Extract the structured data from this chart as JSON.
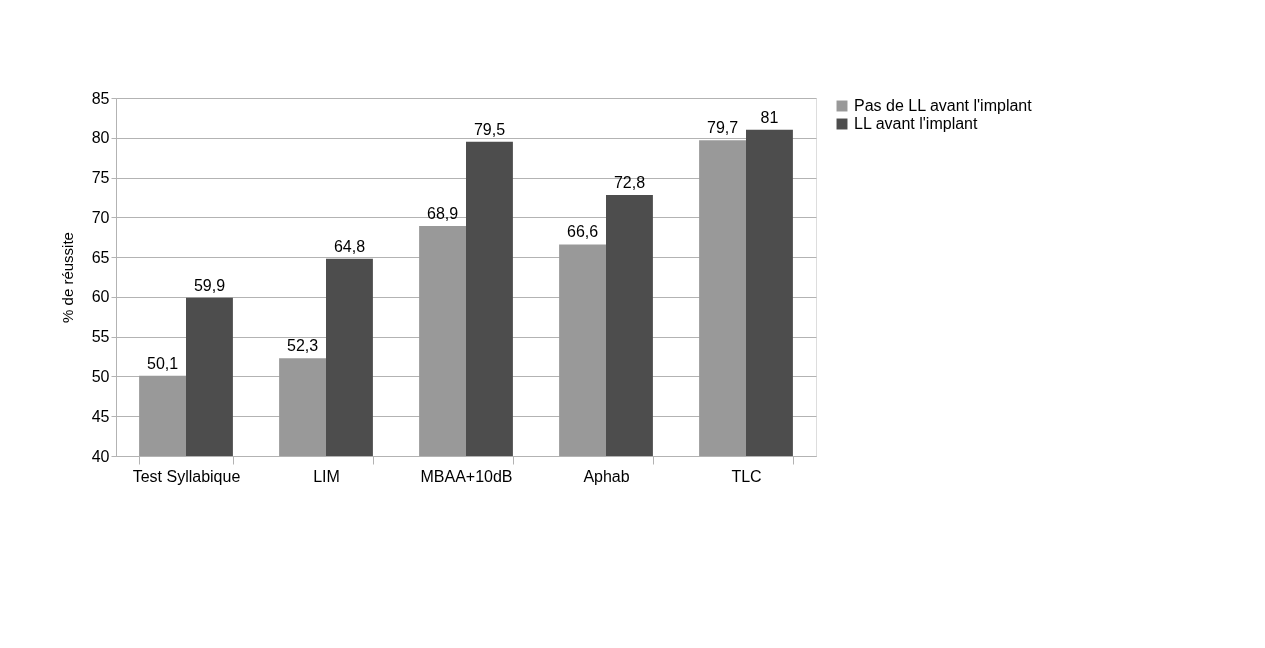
{
  "chart_data": {
    "type": "bar",
    "ylabel": "% de réussite",
    "categories": [
      "Test Syllabique",
      "LIM",
      "MBAA+10dB",
      "Aphab",
      "TLC"
    ],
    "series": [
      {
        "name": "Pas de LL avant l'implant",
        "color": "#999999",
        "values": [
          50.1,
          52.3,
          68.9,
          66.6,
          79.7
        ],
        "value_labels": [
          "50,1",
          "52,3",
          "68,9",
          "66,6",
          "79,7"
        ]
      },
      {
        "name": "LL avant l'implant",
        "color": "#4d4d4d",
        "values": [
          59.9,
          64.8,
          79.5,
          72.8,
          81
        ],
        "value_labels": [
          "59,9",
          "64,8",
          "79,5",
          "72,8",
          "81"
        ]
      }
    ],
    "ylim": [
      40,
      85
    ],
    "yticks": [
      40,
      45,
      50,
      55,
      60,
      65,
      70,
      75,
      80,
      85
    ],
    "grid": "y",
    "legend": "right"
  }
}
